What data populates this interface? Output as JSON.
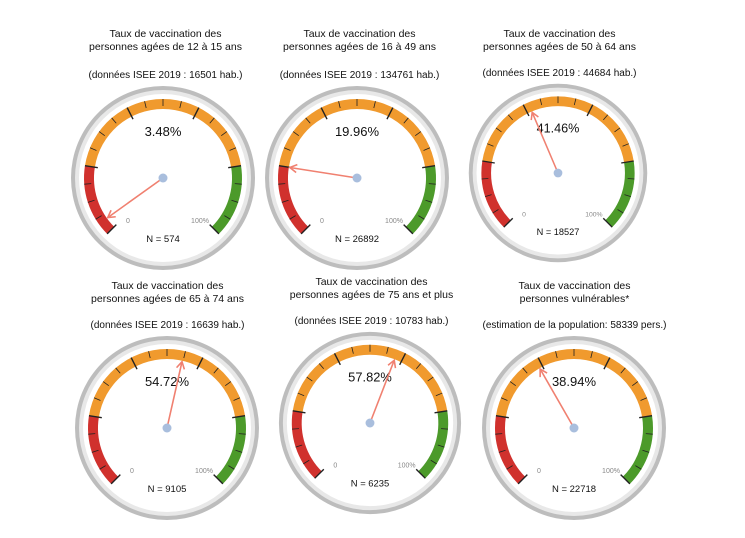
{
  "colors": {
    "red": "#d0312d",
    "orange": "#f09a2e",
    "green": "#4c9a2a",
    "needle": "#f08070",
    "hub": "#a9bedd"
  },
  "chart_data": [
    {
      "type": "gauge",
      "title_line1": "Taux de vaccination des",
      "title_line2": "personnes agées de 12 à 15 ans",
      "subtitle": "(données ISEE 2019 : 16501 hab.)",
      "value": 3.48,
      "value_label": "3.48%",
      "n_label": "N = 574",
      "min_label": "0",
      "max_label": "100%",
      "range": [
        0,
        100
      ]
    },
    {
      "type": "gauge",
      "title_line1": "Taux de vaccination des",
      "title_line2": "personnes agées de 16 à 49 ans",
      "subtitle": "(données ISEE 2019 : 134761 hab.)",
      "value": 19.96,
      "value_label": "19.96%",
      "n_label": "N = 26892",
      "min_label": "0",
      "max_label": "100%",
      "range": [
        0,
        100
      ]
    },
    {
      "type": "gauge",
      "title_line1": "Taux de vaccination des",
      "title_line2": "personnes agées de 50 à 64 ans",
      "subtitle": "(données ISEE 2019 : 44684 hab.)",
      "value": 41.46,
      "value_label": "41.46%",
      "n_label": "N = 18527",
      "min_label": "0",
      "max_label": "100%",
      "range": [
        0,
        100
      ]
    },
    {
      "type": "gauge",
      "title_line1": "Taux de vaccination des",
      "title_line2": "personnes agées de 65 à 74 ans",
      "subtitle": "(données ISEE 2019 : 16639 hab.)",
      "value": 54.72,
      "value_label": "54.72%",
      "n_label": "N = 9105",
      "min_label": "0",
      "max_label": "100%",
      "range": [
        0,
        100
      ]
    },
    {
      "type": "gauge",
      "title_line1": "Taux de vaccination des",
      "title_line2": "personnes agées de 75 ans et plus",
      "subtitle": "(données ISEE 2019 : 10783 hab.)",
      "value": 57.82,
      "value_label": "57.82%",
      "n_label": "N = 6235",
      "min_label": "0",
      "max_label": "100%",
      "range": [
        0,
        100
      ]
    },
    {
      "type": "gauge",
      "title_line1": "Taux de vaccination des",
      "title_line2": "personnes vulnérables*",
      "subtitle": "(estimation de la population: 58339 pers.)",
      "value": 38.94,
      "value_label": "38.94%",
      "n_label": "N = 22718",
      "min_label": "0",
      "max_label": "100%",
      "range": [
        0,
        100
      ]
    }
  ]
}
